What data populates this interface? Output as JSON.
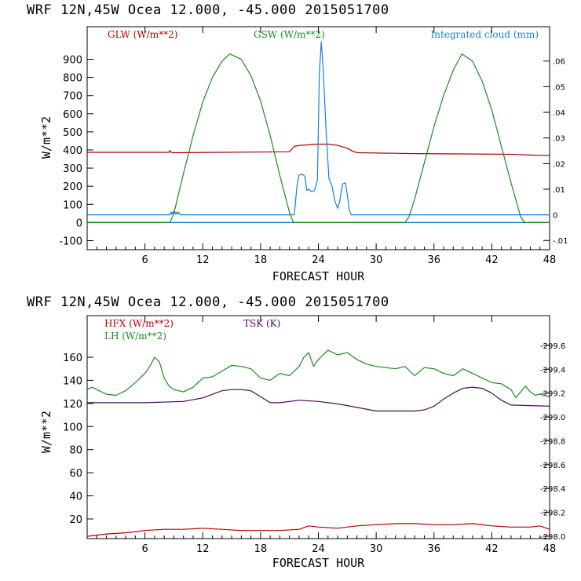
{
  "chart_data": [
    {
      "type": "line",
      "header": "WRF   12N,45W Ocea  12.000, -45.000  2015051700",
      "xlabel": "FORECAST HOUR",
      "ylabel": "W/m**2",
      "xlim": [
        0,
        48
      ],
      "xticks": [
        "6",
        "12",
        "18",
        "24",
        "30",
        "36",
        "42",
        "48"
      ],
      "ylim": [
        -150,
        1080
      ],
      "yticks": [
        "-100",
        "0",
        "100",
        "200",
        "300",
        "400",
        "500",
        "600",
        "700",
        "800",
        "900"
      ],
      "right_ylim": [
        -0.0136,
        0.0734
      ],
      "right_yticks": [
        "-.01",
        "0",
        ".01",
        ".02",
        ".03",
        ".04",
        ".05",
        ".06"
      ],
      "series": [
        {
          "name": "GLW (W/m**2)",
          "color": "#b00000",
          "axis": "left",
          "x": [
            0,
            8.5,
            8.6,
            8.7,
            9,
            21,
            21.5,
            22,
            23,
            24,
            25,
            26,
            27,
            27.5,
            28,
            34,
            40,
            44,
            46,
            48
          ],
          "y": [
            387,
            387,
            398,
            387,
            385,
            390,
            420,
            425,
            428,
            432,
            432,
            425,
            410,
            395,
            385,
            380,
            378,
            376,
            372,
            369
          ]
        },
        {
          "name": "GSW (W/m**2)",
          "color": "#1a8c1a",
          "axis": "left",
          "x": [
            0,
            8.6,
            9,
            10,
            11,
            12,
            13,
            14,
            14.8,
            16,
            17,
            18,
            19,
            20,
            21,
            21.4,
            33,
            33.4,
            34,
            35,
            36,
            37,
            38,
            38.9,
            40,
            41,
            42,
            43,
            44,
            45,
            45.4,
            48
          ],
          "y": [
            0,
            0,
            50,
            270,
            480,
            665,
            800,
            890,
            930,
            900,
            810,
            670,
            480,
            260,
            55,
            0,
            0,
            30,
            130,
            330,
            530,
            700,
            840,
            930,
            890,
            780,
            620,
            420,
            220,
            30,
            0,
            0
          ]
        },
        {
          "name": "Integrated cloud (mm)",
          "color": "#1a7fd4",
          "axis": "right",
          "x": [
            0,
            8.6,
            8.7,
            8.8,
            8.9,
            9.0,
            9.1,
            9.2,
            9.3,
            9.4,
            9.5,
            9.6,
            9.7,
            21.5,
            21.8,
            22.0,
            22.3,
            22.6,
            22.8,
            23.0,
            23.3,
            23.6,
            23.9,
            24.1,
            24.3,
            24.5,
            24.8,
            25.1,
            25.4,
            25.7,
            26.0,
            26.2,
            26.5,
            26.8,
            27.0,
            27.2,
            27.4,
            48
          ],
          "y": [
            0,
            0,
            0.0011,
            0.0002,
            0.0013,
            0.0004,
            0.0012,
            0.0002,
            0.0011,
            0.0003,
            0.001,
            0.0003,
            0,
            0,
            0.012,
            0.0155,
            0.016,
            0.015,
            0.0095,
            0.01,
            0.009,
            0.0095,
            0.0135,
            0.055,
            0.0675,
            0.057,
            0.033,
            0.014,
            0.0115,
            0.0055,
            0.0025,
            0.005,
            0.012,
            0.0125,
            0.008,
            0.002,
            0,
            0
          ]
        }
      ]
    },
    {
      "type": "line",
      "header": "WRF   12N,45W Ocea  12.000, -45.000  2015051700",
      "xlabel": "FORECAST HOUR",
      "ylabel": "W/m**2",
      "xlim": [
        0,
        48
      ],
      "xticks": [
        "6",
        "12",
        "18",
        "24",
        "30",
        "36",
        "42",
        "48"
      ],
      "ylim": [
        3,
        196
      ],
      "yticks": [
        "20",
        "40",
        "60",
        "80",
        "100",
        "120",
        "140",
        "160"
      ],
      "right_ylim": [
        297.98,
        299.85
      ],
      "right_yticks": [
        "298.0",
        "298.2",
        "298.4",
        "298.6",
        "298.8",
        "299.0",
        "299.2",
        "299.4",
        "299.6"
      ],
      "series": [
        {
          "name": "HFX (W/m**2)",
          "color": "#b00000",
          "axis": "left",
          "x": [
            0,
            2,
            4,
            6,
            8,
            10,
            12,
            14,
            16,
            18,
            20,
            22,
            23,
            24,
            26,
            28,
            30,
            32,
            34,
            36,
            38,
            40,
            42,
            44,
            46,
            47,
            48
          ],
          "y": [
            5,
            7,
            8,
            10,
            11,
            11,
            12,
            11,
            10,
            10,
            10,
            11,
            14,
            13,
            12,
            14,
            15,
            16,
            16,
            15,
            15,
            16,
            14,
            13,
            13,
            14,
            11
          ]
        },
        {
          "name": "LH (W/m**2)",
          "color": "#1a8c1a",
          "axis": "left",
          "x": [
            0,
            0.5,
            1,
            2,
            3,
            4,
            5,
            6,
            6.5,
            7,
            7.5,
            8,
            8.5,
            9,
            10,
            11,
            12,
            13,
            14,
            15,
            16,
            17,
            18,
            19,
            20,
            21,
            22,
            22.5,
            23,
            23.5,
            24,
            25,
            26,
            27,
            28,
            29,
            30,
            31,
            32,
            33,
            34,
            35,
            36,
            37,
            38,
            39,
            40,
            41,
            42,
            43,
            44,
            44.5,
            45,
            45.5,
            46,
            46.5,
            47,
            48
          ],
          "y": [
            132,
            134,
            132,
            128,
            127,
            131,
            138,
            146,
            152,
            160,
            156,
            142,
            135,
            132,
            130,
            134,
            142,
            143,
            148,
            153,
            152,
            150,
            142,
            140,
            146,
            144,
            152,
            160,
            164,
            152,
            158,
            166,
            162,
            164,
            158,
            154,
            152,
            151,
            150,
            152,
            144,
            151,
            150,
            146,
            144,
            150,
            146,
            142,
            138,
            137,
            132,
            125,
            130,
            135,
            130,
            127,
            128,
            126
          ]
        },
        {
          "name": "TSK (K)",
          "color": "#4b0a5a",
          "axis": "right",
          "x": [
            0,
            2,
            6,
            10,
            12,
            13,
            14,
            15,
            16,
            17,
            18,
            19,
            20,
            22,
            24,
            26,
            28,
            30,
            32,
            34,
            35,
            36,
            37,
            38,
            39,
            40,
            41,
            42,
            43,
            44,
            48
          ],
          "y": [
            299.12,
            299.12,
            299.12,
            299.13,
            299.16,
            299.19,
            299.22,
            299.23,
            299.23,
            299.22,
            299.17,
            299.12,
            299.12,
            299.14,
            299.13,
            299.11,
            299.08,
            299.05,
            299.05,
            299.05,
            299.06,
            299.09,
            299.15,
            299.2,
            299.24,
            299.25,
            299.24,
            299.2,
            299.14,
            299.1,
            299.09
          ]
        }
      ]
    }
  ]
}
